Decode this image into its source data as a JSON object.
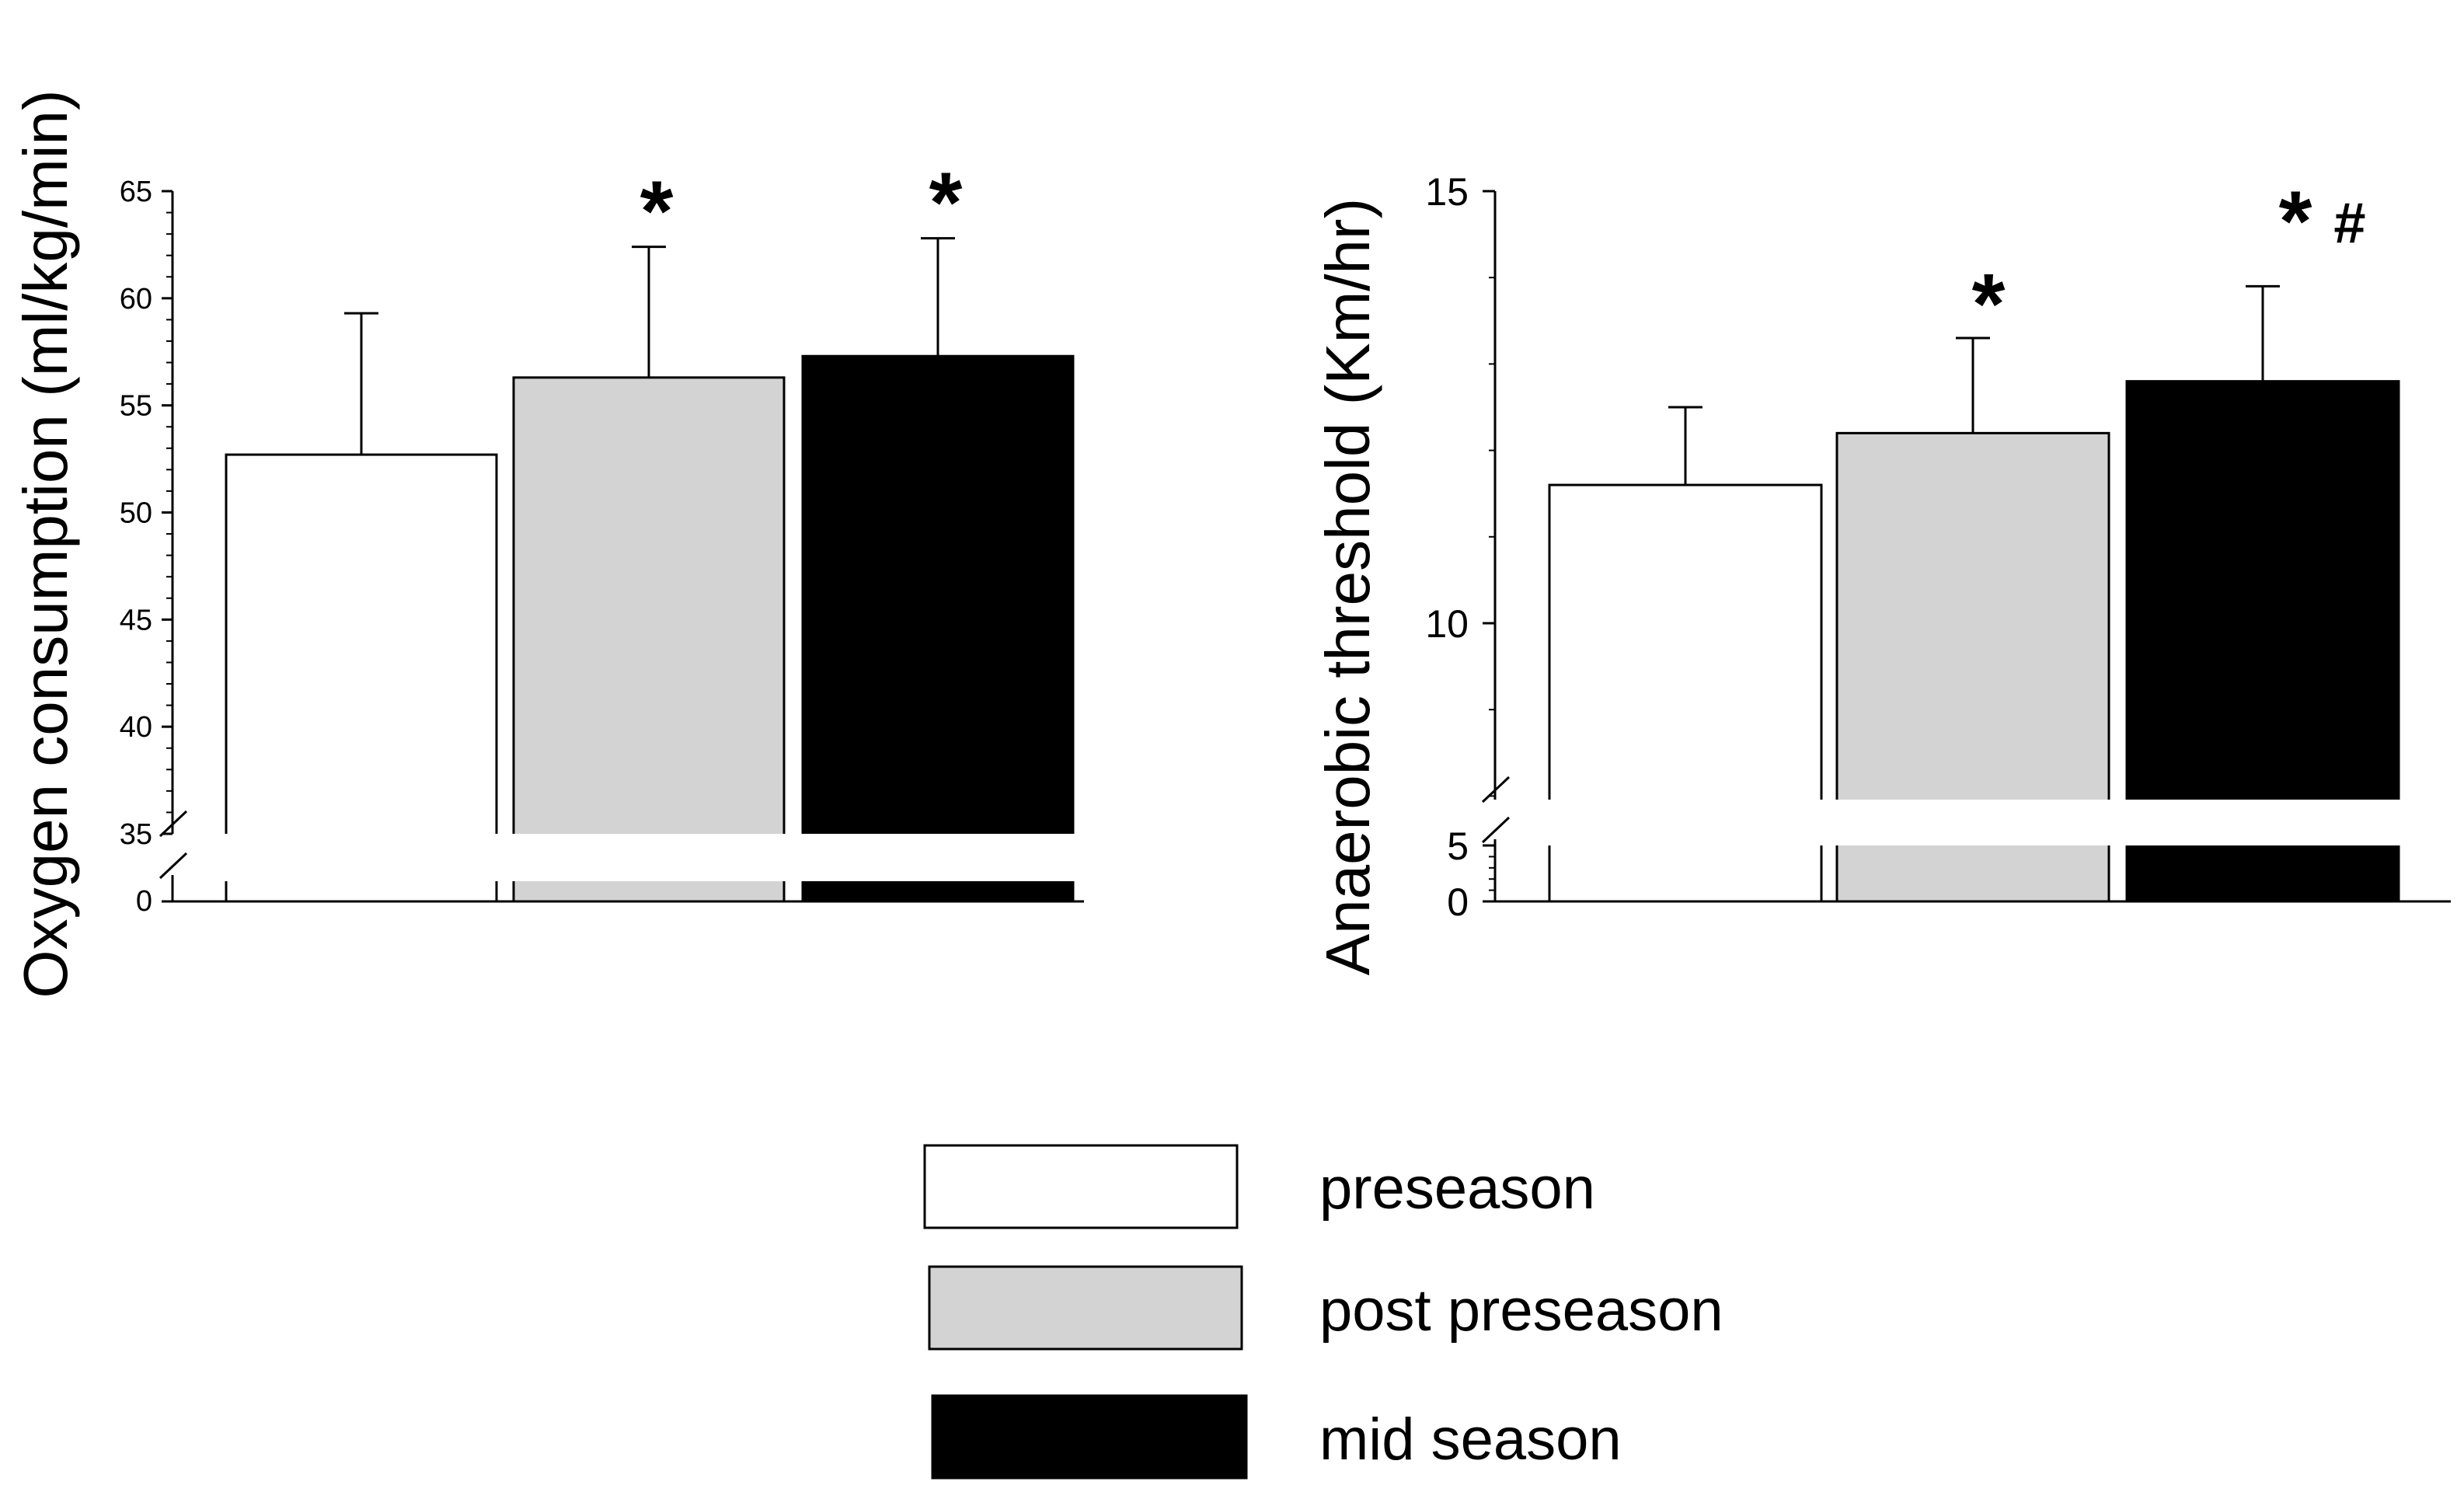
{
  "chart_data": [
    {
      "type": "bar",
      "title": "",
      "ylabel": "Oxygen consumption (ml/kg/min)",
      "xlabel": "",
      "ylim": [
        35,
        65
      ],
      "broken_axis": {
        "lower_tick": 0,
        "upper_start": 35
      },
      "yticks": [
        {
          "value": 35,
          "label": "35"
        },
        {
          "value": 40,
          "label": "40"
        },
        {
          "value": 45,
          "label": "45"
        },
        {
          "value": 50,
          "label": "50"
        },
        {
          "value": 55,
          "label": "55"
        },
        {
          "value": 60,
          "label": "60"
        },
        {
          "value": 65,
          "label": "65"
        }
      ],
      "bottom_tick_label": "0",
      "categories": [
        "preseason",
        "post preseason",
        "mid season"
      ],
      "values": [
        52.7,
        56.3,
        57.3
      ],
      "errors": [
        6.6,
        6.1,
        5.5
      ],
      "significance": [
        "",
        "*",
        "*"
      ]
    },
    {
      "type": "bar",
      "title": "",
      "ylabel": "Anaerobic threshold (Km/hr)",
      "xlabel": "",
      "ylim": [
        8,
        15
      ],
      "broken_axis": {
        "lower_ticks": [
          0,
          5
        ],
        "upper_start": 8
      },
      "yticks": [
        {
          "value": 10,
          "label": "10"
        },
        {
          "value": 15,
          "label": "15"
        }
      ],
      "bottom_tick_labels": [
        "0",
        "5"
      ],
      "categories": [
        "preseason",
        "post preseason",
        "mid season"
      ],
      "values": [
        11.6,
        12.2,
        12.8
      ],
      "errors": [
        0.9,
        1.1,
        1.1
      ],
      "significance": [
        "",
        "*",
        "* #"
      ]
    }
  ],
  "legend": {
    "position": "bottom-center",
    "items": [
      {
        "label": "preseason",
        "color": "#ffffff"
      },
      {
        "label": "post preseason",
        "color": "#d3d3d3"
      },
      {
        "label": "mid season",
        "color": "#000000"
      }
    ]
  }
}
